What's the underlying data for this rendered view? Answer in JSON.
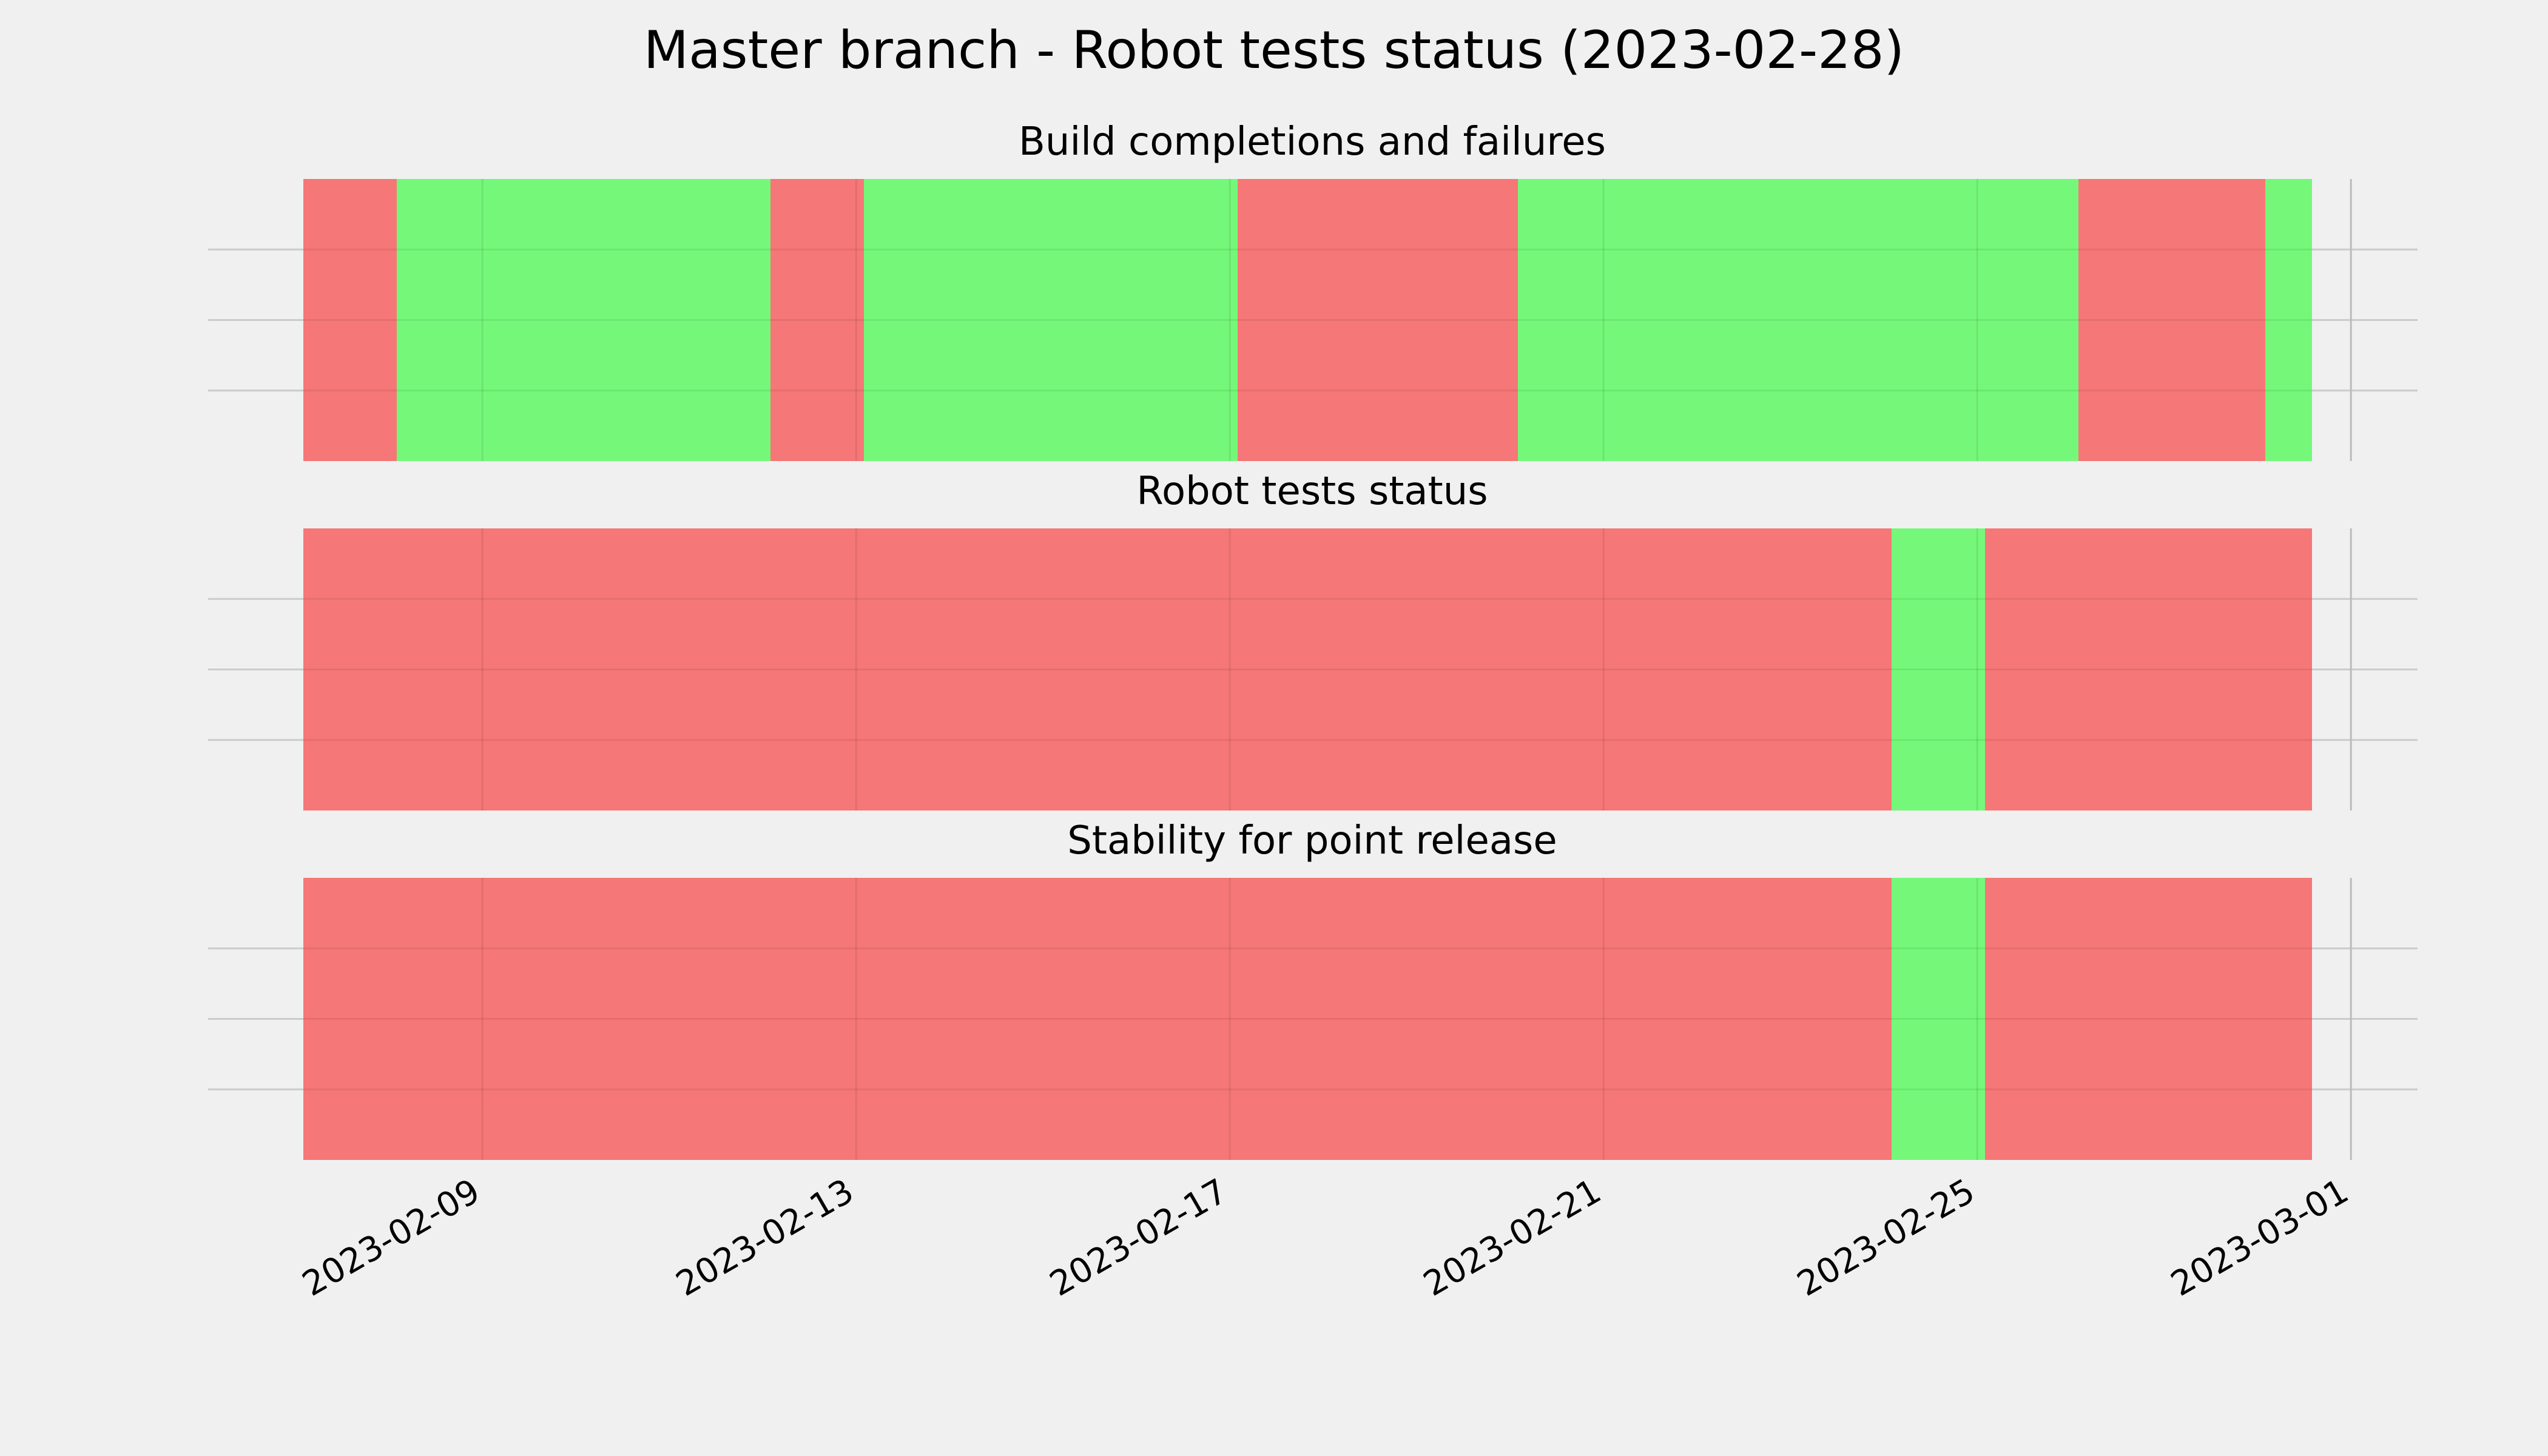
{
  "colors": {
    "background": "#f0f0f0",
    "pass": "#75f87a",
    "fail": "#f67777",
    "grid": "#cbcbcb"
  },
  "chart_data": {
    "type": "timeline",
    "title": "Master branch - Robot tests status (2023-02-28)",
    "grid": true,
    "xlim": [
      "2023-02-07",
      "2023-03-01"
    ],
    "x_ticks": [
      "2023-02-09",
      "2023-02-13",
      "2023-02-17",
      "2023-02-21",
      "2023-02-25",
      "2023-03-01"
    ],
    "panels": [
      {
        "title": "Build completions and failures",
        "segments": [
          {
            "start": "2023-02-07 02:00",
            "end": "2023-02-08 02:00",
            "status": "fail"
          },
          {
            "start": "2023-02-08 02:00",
            "end": "2023-02-12 02:00",
            "status": "pass"
          },
          {
            "start": "2023-02-12 02:00",
            "end": "2023-02-13 02:00",
            "status": "fail"
          },
          {
            "start": "2023-02-13 02:00",
            "end": "2023-02-17 02:00",
            "status": "pass"
          },
          {
            "start": "2023-02-17 02:00",
            "end": "2023-02-20 02:00",
            "status": "fail"
          },
          {
            "start": "2023-02-20 02:00",
            "end": "2023-02-26 02:00",
            "status": "pass"
          },
          {
            "start": "2023-02-26 02:00",
            "end": "2023-02-28 02:00",
            "status": "fail"
          },
          {
            "start": "2023-02-28 02:00",
            "end": "2023-02-28 14:00",
            "status": "pass"
          }
        ]
      },
      {
        "title": "Robot tests status",
        "segments": [
          {
            "start": "2023-02-07 02:00",
            "end": "2023-02-24 02:00",
            "status": "fail"
          },
          {
            "start": "2023-02-24 02:00",
            "end": "2023-02-25 02:00",
            "status": "pass"
          },
          {
            "start": "2023-02-25 02:00",
            "end": "2023-02-28 14:00",
            "status": "fail"
          }
        ]
      },
      {
        "title": "Stability for point release",
        "segments": [
          {
            "start": "2023-02-07 02:00",
            "end": "2023-02-24 02:00",
            "status": "fail"
          },
          {
            "start": "2023-02-24 02:00",
            "end": "2023-02-25 02:00",
            "status": "pass"
          },
          {
            "start": "2023-02-25 02:00",
            "end": "2023-02-28 14:00",
            "status": "fail"
          }
        ]
      }
    ]
  }
}
